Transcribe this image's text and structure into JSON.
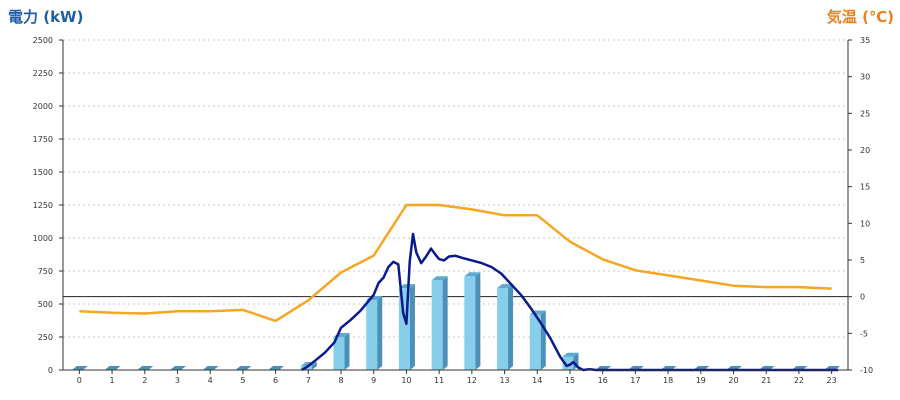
{
  "header": {
    "left_title": "電力 (kW)",
    "right_title": "気温 (℃)"
  },
  "colors": {
    "bar": "#87ceeb",
    "bar_dark": "#4a90b8",
    "bar_top": "#5fa8cf",
    "temperature_line": "#f5a623",
    "power_line": "#0a1a8c",
    "left_axis_title": "#1f5fa8",
    "right_axis_title": "#e8821e"
  },
  "chart_data": {
    "type": "bar",
    "title": "",
    "categories": [
      "0",
      "1",
      "2",
      "3",
      "4",
      "5",
      "6",
      "7",
      "8",
      "9",
      "10",
      "11",
      "12",
      "13",
      "14",
      "15",
      "16",
      "17",
      "18",
      "19",
      "20",
      "21",
      "22",
      "23"
    ],
    "y_left": {
      "label": "電力 (kW)",
      "range": [
        0,
        2500
      ],
      "ticks": [
        "0",
        "250",
        "500",
        "750",
        "1000",
        "1250",
        "1500",
        "1750",
        "2000",
        "2250",
        "2500"
      ]
    },
    "y_right": {
      "label": "気温 (℃)",
      "range": [
        -10,
        35
      ],
      "ticks": [
        "-10",
        "-5",
        "0",
        "5",
        "10",
        "15",
        "20",
        "25",
        "30",
        "35"
      ]
    },
    "grid": "horizontal dashed",
    "reference_line": {
      "axis": "right",
      "value": 0
    },
    "series": [
      {
        "type": "bar",
        "axis": "left",
        "values": [
          0,
          0,
          0,
          0,
          0,
          0,
          0,
          30,
          250,
          530,
          620,
          680,
          710,
          620,
          420,
          100,
          0,
          0,
          0,
          0,
          0,
          0,
          0,
          0
        ]
      },
      {
        "type": "line",
        "axis": "right",
        "x": [
          0,
          1,
          2,
          3,
          4,
          5,
          6,
          7,
          8,
          9,
          10,
          11,
          12,
          13,
          14,
          15,
          16,
          17,
          18,
          19,
          20,
          21,
          22,
          23
        ],
        "values": [
          -2.0,
          -2.2,
          -2.3,
          -2.0,
          -2.0,
          -1.8,
          -3.3,
          -0.5,
          3.3,
          5.6,
          12.5,
          12.5,
          11.9,
          11.1,
          11.1,
          7.5,
          5.1,
          3.6,
          2.9,
          2.2,
          1.5,
          1.3,
          1.3,
          1.1
        ]
      },
      {
        "type": "line",
        "axis": "left",
        "x": [
          6.8,
          7.0,
          7.2,
          7.5,
          7.8,
          8.0,
          8.3,
          8.6,
          8.8,
          9.0,
          9.15,
          9.3,
          9.45,
          9.6,
          9.75,
          9.9,
          10.0,
          10.1,
          10.2,
          10.3,
          10.45,
          10.6,
          10.75,
          10.9,
          11.0,
          11.15,
          11.3,
          11.5,
          11.7,
          12.0,
          12.3,
          12.6,
          12.9,
          13.2,
          13.5,
          13.8,
          14.1,
          14.4,
          14.7,
          14.9,
          15.0,
          15.1,
          15.25,
          15.4,
          15.6,
          15.8,
          16.0,
          17,
          18,
          19,
          20,
          21,
          22,
          23.2
        ],
        "values": [
          0,
          30,
          70,
          130,
          210,
          320,
          380,
          450,
          510,
          570,
          660,
          700,
          780,
          820,
          800,
          430,
          350,
          820,
          1030,
          890,
          810,
          860,
          920,
          870,
          840,
          830,
          860,
          865,
          850,
          830,
          810,
          780,
          730,
          650,
          570,
          470,
          360,
          240,
          100,
          30,
          40,
          60,
          20,
          0,
          5,
          0,
          0,
          0,
          0,
          0,
          0,
          0,
          0,
          0
        ]
      }
    ]
  }
}
